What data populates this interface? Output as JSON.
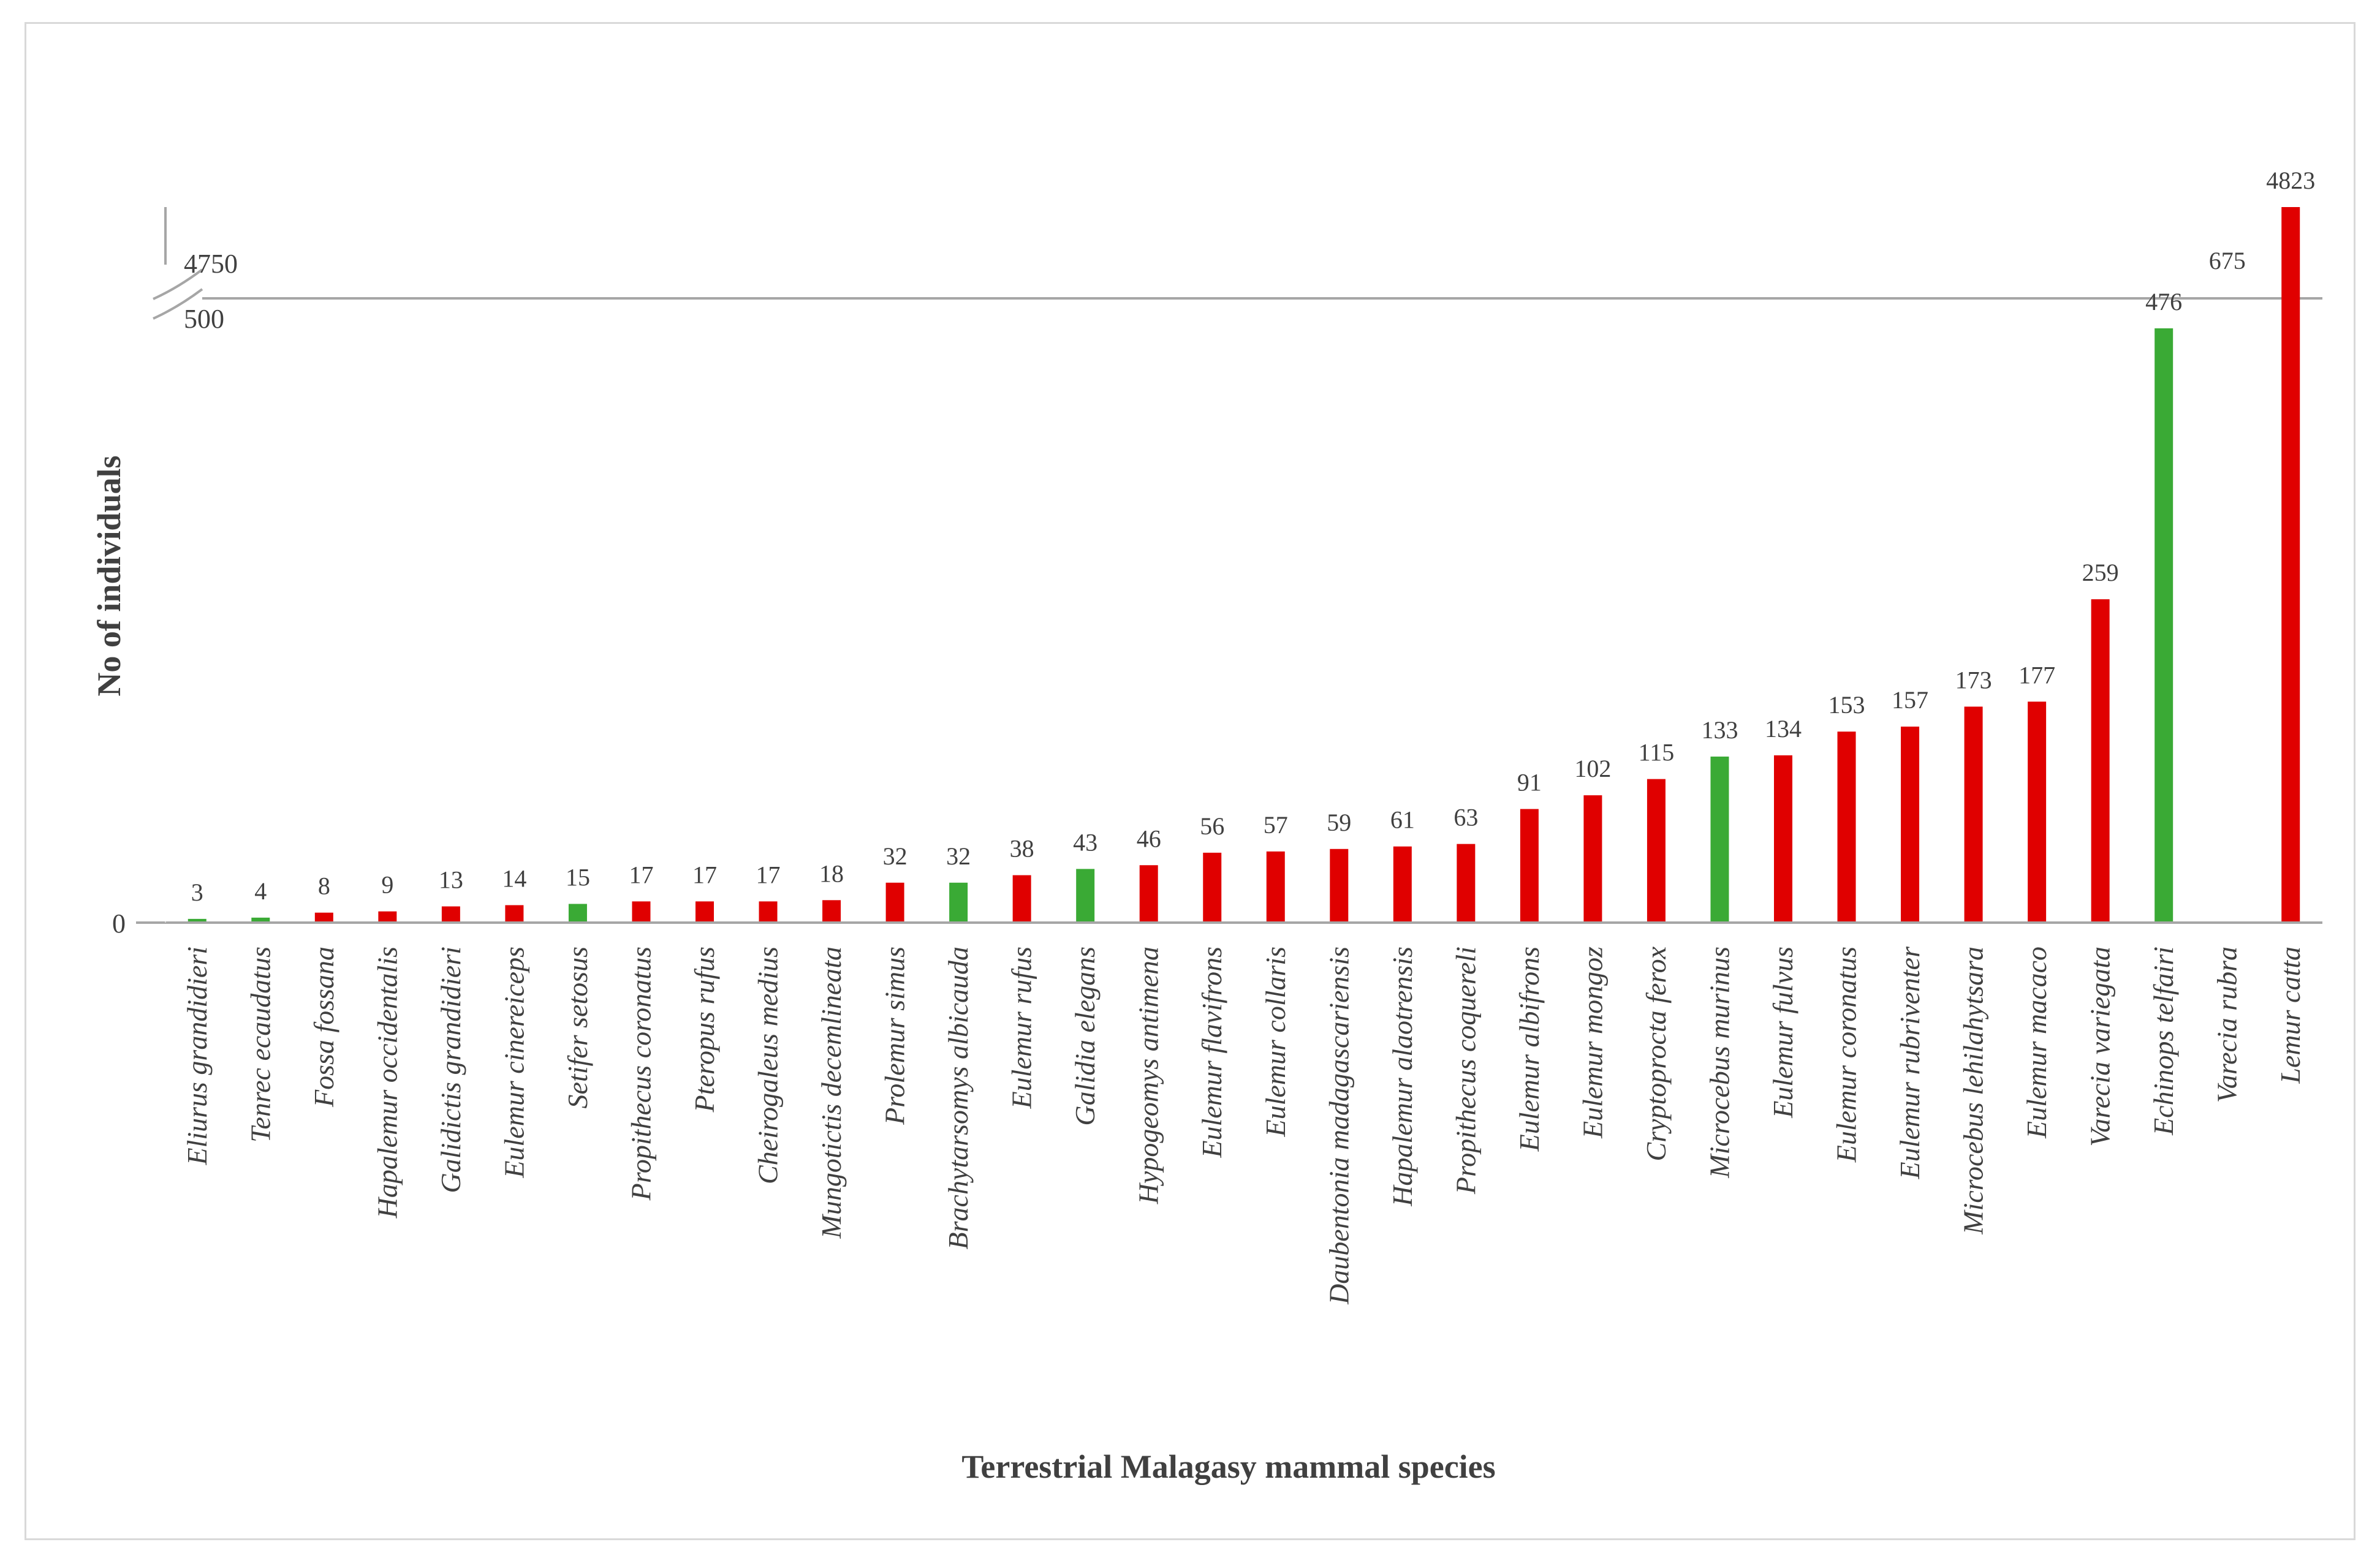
{
  "chart_data": {
    "type": "bar",
    "title": "",
    "xlabel": "Terrestrial Malagasy mammal species",
    "ylabel": "No of individuals",
    "ylim_lower": [
      0,
      500
    ],
    "ylim_upper": [
      4750,
      4823
    ],
    "axis_break": {
      "lower_label": "500",
      "upper_label": "4750"
    },
    "zero_label": "0",
    "legend": "none",
    "colors": {
      "red": "#e00000",
      "green": "#3aaa35"
    },
    "categories": [
      "Eliurus grandidieri",
      "Tenrec ecaudatus",
      "Fossa fossana",
      "Hapalemur occidentalis",
      "Galidictis grandidieri",
      "Eulemur cinereiceps",
      "Setifer setosus",
      "Propithecus coronatus",
      "Pteropus rufus",
      "Cheirogaleus medius",
      "Mungotictis decemlineata",
      "Prolemur simus",
      "Brachytarsomys albicauda",
      "Eulemur rufus",
      "Galidia elegans",
      "Hypogeomys antimena",
      "Eulemur flavifrons",
      "Eulemur collaris",
      "Daubentonia madagascariensis",
      "Hapalemur alaotrensis",
      "Propithecus coquereli",
      "Eulemur albifrons",
      "Eulemur mongoz",
      "Cryptoprocta ferox",
      "Microcebus murinus",
      "Eulemur fulvus",
      "Eulemur coronatus",
      "Eulemur rubriventer",
      "Microcebus lehilahytsara",
      "Eulemur macaco",
      "Varecia variegata",
      "Echinops telfairi",
      "Varecia rubra",
      "Lemur catta"
    ],
    "values": [
      3,
      4,
      8,
      9,
      13,
      14,
      15,
      17,
      17,
      17,
      18,
      32,
      32,
      38,
      43,
      46,
      56,
      57,
      59,
      61,
      63,
      91,
      102,
      115,
      133,
      134,
      153,
      157,
      173,
      177,
      259,
      476,
      675,
      4823
    ],
    "value_labels": [
      "3",
      "4",
      "8",
      "9",
      "13",
      "14",
      "15",
      "17",
      "17",
      "17",
      "18",
      "32",
      "32",
      "38",
      "43",
      "46",
      "56",
      "57",
      "59",
      "61",
      "63",
      "91",
      "102",
      "115",
      "133",
      "134",
      "153",
      "157",
      "173",
      "177",
      "259",
      "476",
      "675",
      "4823"
    ],
    "bar_colors": [
      "green",
      "green",
      "red",
      "red",
      "red",
      "red",
      "green",
      "red",
      "red",
      "red",
      "red",
      "red",
      "green",
      "red",
      "green",
      "red",
      "red",
      "red",
      "red",
      "red",
      "red",
      "red",
      "red",
      "red",
      "green",
      "red",
      "red",
      "red",
      "red",
      "red",
      "red",
      "green",
      "red",
      "red"
    ]
  }
}
